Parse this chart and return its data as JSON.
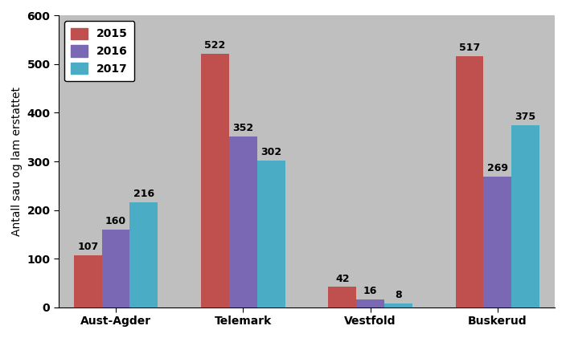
{
  "categories": [
    "Aust-Agder",
    "Telemark",
    "Vestfold",
    "Buskerud"
  ],
  "series": {
    "2015": [
      107,
      522,
      42,
      517
    ],
    "2016": [
      160,
      352,
      16,
      269
    ],
    "2017": [
      216,
      302,
      8,
      375
    ]
  },
  "colors": {
    "2015": "#C0504D",
    "2016": "#7B68B5",
    "2017": "#4BACC6"
  },
  "ylabel": "Antall sau og lam erstattet",
  "ylim": [
    0,
    600
  ],
  "yticks": [
    0,
    100,
    200,
    300,
    400,
    500,
    600
  ],
  "legend_labels": [
    "2015",
    "2016",
    "2017"
  ],
  "bar_width": 0.22,
  "plot_bg_color": "#BFBFBF",
  "figure_bg_color": "#FFFFFF",
  "label_fontsize": 9,
  "ylabel_fontsize": 10,
  "tick_fontsize": 10,
  "legend_fontsize": 10
}
